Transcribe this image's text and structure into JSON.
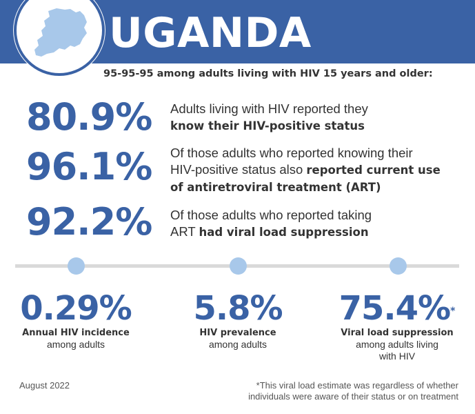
{
  "header": {
    "title": "UGANDA",
    "map_icon": "uganda-map-icon",
    "banner_color": "#3a62a5",
    "map_color": "#a8c8ea"
  },
  "subtitle": "95-95-95 among adults living with HIV 15 years and older:",
  "stats": [
    {
      "value": "80.9%",
      "line1_plain": "Adults living with HIV reported they",
      "line2_plain": "",
      "line2_bold": "know their HIV-positive status"
    },
    {
      "value": "96.1%",
      "line1_plain": "Of those adults who reported knowing their",
      "line2_plain": "HIV-positive status also ",
      "line2_bold": "reported current use",
      "line3_bold": "of antiretroviral treatment (ART)"
    },
    {
      "value": "92.2%",
      "line1_plain": "Of those adults who reported taking",
      "line2_plain": "ART ",
      "line2_bold": "had viral load suppression"
    }
  ],
  "bottom": [
    {
      "value": "0.29%",
      "asterisk": "",
      "label": "Annual HIV incidence",
      "sub1": "among adults",
      "sub2": ""
    },
    {
      "value": "5.8%",
      "asterisk": "",
      "label": "HIV prevalence",
      "sub1": "among adults",
      "sub2": ""
    },
    {
      "value": "75.4%",
      "asterisk": "*",
      "label": "Viral load suppression",
      "sub1": "among adults living",
      "sub2": "with HIV"
    }
  ],
  "footer": {
    "date": "August 2022",
    "footnote_line1": "*This viral load estimate was regardless of whether",
    "footnote_line2": "individuals were aware of their status or on treatment"
  },
  "colors": {
    "accent": "#3a62a5",
    "dot": "#a8c8ea",
    "line": "#d9d9d9"
  }
}
